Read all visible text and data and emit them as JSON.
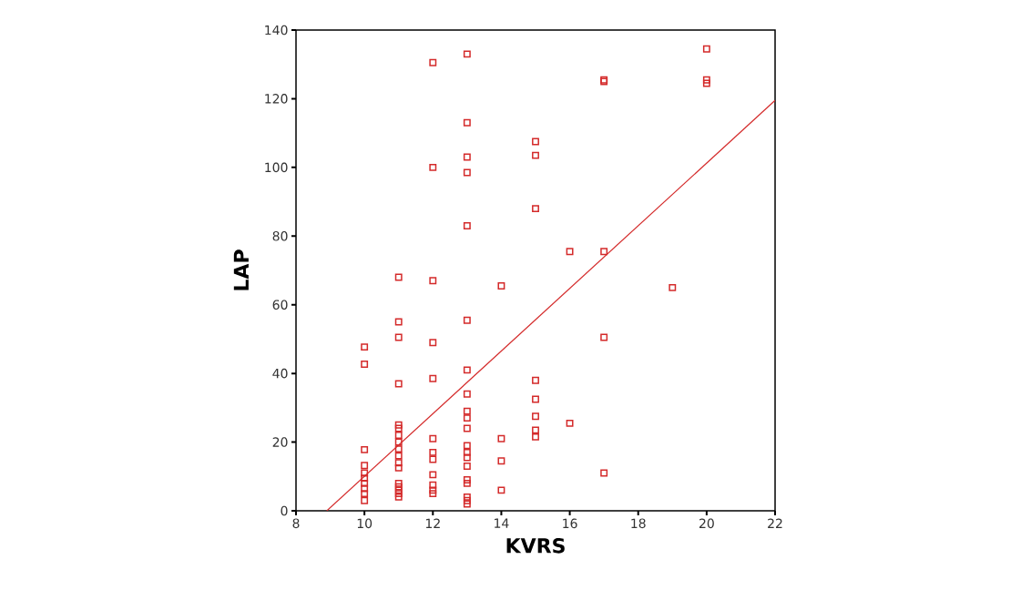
{
  "chart_data": {
    "type": "scatter",
    "xlabel": "KVRS",
    "ylabel": "LAP",
    "xlim": [
      8,
      22
    ],
    "xticks": [
      8,
      10,
      12,
      14,
      16,
      18,
      20,
      22
    ],
    "ylim": [
      0,
      140
    ],
    "yticks": [
      0,
      20,
      40,
      60,
      80,
      100,
      120,
      140
    ],
    "marker": "square",
    "series": [
      {
        "color": "#d42a2a",
        "x": [
          10,
          10,
          10,
          10,
          10,
          10,
          10,
          10,
          10,
          10,
          11,
          11,
          11,
          11,
          11,
          11,
          11,
          11,
          11,
          11,
          11,
          11,
          11,
          11,
          11,
          11,
          11,
          12,
          12,
          12,
          12,
          12,
          12,
          12,
          12,
          12,
          12,
          12,
          12,
          13,
          13,
          13,
          13,
          13,
          13,
          13,
          13,
          13,
          13,
          13,
          13,
          13,
          13,
          13,
          13,
          13,
          13,
          13,
          13,
          14,
          14,
          14,
          14,
          15,
          15,
          15,
          15,
          15,
          15,
          15,
          15,
          16,
          16,
          17,
          17,
          17,
          17,
          17,
          19,
          20,
          20,
          20
        ],
        "values": [
          47.7,
          42.7,
          17.8,
          13.2,
          11,
          9.5,
          8,
          6.5,
          5,
          3,
          68,
          55,
          50.5,
          37,
          25,
          24,
          22,
          20,
          18,
          16,
          14,
          12.5,
          8,
          7,
          6,
          5,
          4,
          130.5,
          100,
          67,
          49,
          38.5,
          21,
          17,
          15,
          10.5,
          7.5,
          6,
          5,
          133,
          113,
          103,
          98.5,
          83,
          55.5,
          41,
          34,
          29,
          27,
          24,
          19,
          17,
          15.5,
          13,
          9,
          8,
          4,
          3,
          2,
          65.5,
          21,
          14.5,
          6,
          107.5,
          103.5,
          88,
          38,
          32.5,
          27.5,
          23.5,
          21.5,
          75.5,
          25.5,
          125.5,
          125,
          75.5,
          50.5,
          11,
          65,
          134.5,
          125.5,
          124.5
        ]
      },
      {
        "type": "line",
        "color": "#d42a2a",
        "marker": "none",
        "x": [
          8.9,
          22
        ],
        "values": [
          0,
          119.5
        ]
      }
    ]
  }
}
